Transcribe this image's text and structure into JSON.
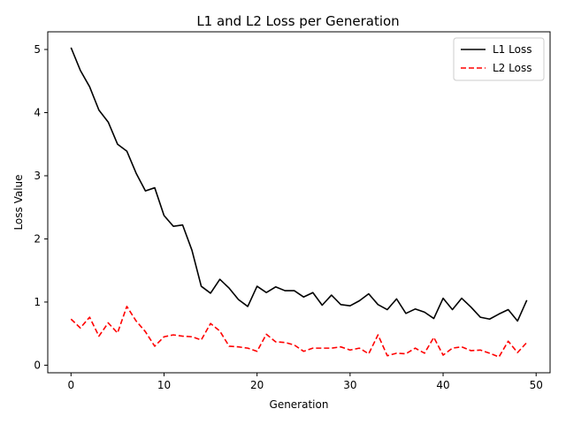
{
  "chart_data": {
    "type": "line",
    "title": "L1 and L2 Loss per Generation",
    "xlabel": "Generation",
    "ylabel": "Loss Value",
    "xlim": [
      -2.5,
      51.5
    ],
    "ylim": [
      -0.12,
      5.28
    ],
    "xticks": [
      0,
      10,
      20,
      30,
      40,
      50
    ],
    "yticks": [
      0,
      1,
      2,
      3,
      4,
      5
    ],
    "grid": false,
    "legend_position": "top-right",
    "x": [
      0,
      1,
      2,
      3,
      4,
      5,
      6,
      7,
      8,
      9,
      10,
      11,
      12,
      13,
      14,
      15,
      16,
      17,
      18,
      19,
      20,
      21,
      22,
      23,
      24,
      25,
      26,
      27,
      28,
      29,
      30,
      31,
      32,
      33,
      34,
      35,
      36,
      37,
      38,
      39,
      40,
      41,
      42,
      43,
      44,
      45,
      46,
      47,
      48,
      49
    ],
    "series": [
      {
        "name": "L1 Loss",
        "color": "#000000",
        "style": "solid",
        "values": [
          5.03,
          4.67,
          4.41,
          4.04,
          3.85,
          3.5,
          3.39,
          3.04,
          2.76,
          2.81,
          2.37,
          2.2,
          2.22,
          1.82,
          1.25,
          1.14,
          1.36,
          1.22,
          1.04,
          0.93,
          1.25,
          1.15,
          1.24,
          1.18,
          1.18,
          1.08,
          1.15,
          0.95,
          1.11,
          0.96,
          0.94,
          1.02,
          1.13,
          0.96,
          0.88,
          1.05,
          0.82,
          0.89,
          0.84,
          0.74,
          1.06,
          0.88,
          1.06,
          0.92,
          0.76,
          0.73,
          0.81,
          0.88,
          0.7,
          1.03
        ]
      },
      {
        "name": "L2 Loss",
        "color": "#ff0000",
        "style": "dashed",
        "values": [
          0.73,
          0.59,
          0.76,
          0.46,
          0.67,
          0.51,
          0.93,
          0.7,
          0.53,
          0.3,
          0.45,
          0.48,
          0.46,
          0.45,
          0.4,
          0.66,
          0.54,
          0.3,
          0.29,
          0.27,
          0.22,
          0.49,
          0.37,
          0.36,
          0.32,
          0.22,
          0.27,
          0.27,
          0.27,
          0.29,
          0.24,
          0.27,
          0.18,
          0.48,
          0.15,
          0.19,
          0.18,
          0.27,
          0.19,
          0.44,
          0.16,
          0.27,
          0.29,
          0.23,
          0.24,
          0.19,
          0.13,
          0.38,
          0.2,
          0.36
        ]
      }
    ]
  }
}
